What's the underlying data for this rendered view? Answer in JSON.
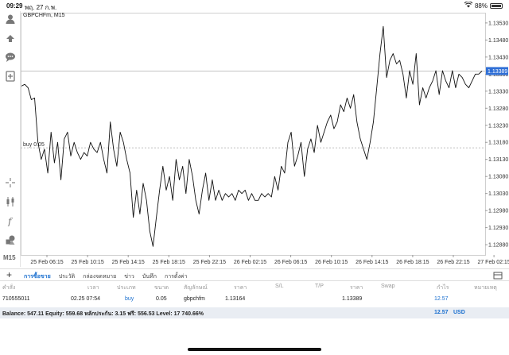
{
  "status": {
    "time": "09:29",
    "date": "พฤ. 27 ก.พ.",
    "battery": "88%",
    "battery_level": 0.88
  },
  "chart": {
    "symbol": "GBPCHFm, M15",
    "timeframe_label": "M15",
    "order_line_label": "buy 0.05",
    "current_price": "1.13389",
    "colors": {
      "line": "#111111",
      "grid": "#ececec",
      "price_tag": "#2f6fd6",
      "order_line": "#aaaaaa"
    }
  },
  "chart_data": {
    "type": "line",
    "title": "GBPCHFm, M15",
    "ylim": [
      1.1285,
      1.1356
    ],
    "y_ticks": [
      "1.13530",
      "1.13480",
      "1.13430",
      "1.13380",
      "1.13330",
      "1.13280",
      "1.13230",
      "1.13180",
      "1.13130",
      "1.13080",
      "1.13030",
      "1.12980",
      "1.12930",
      "1.12880"
    ],
    "y_tick_values": [
      1.1353,
      1.1348,
      1.1343,
      1.1338,
      1.1333,
      1.1328,
      1.1323,
      1.1318,
      1.1313,
      1.1308,
      1.1303,
      1.1298,
      1.1293,
      1.1288
    ],
    "x_ticks": [
      "25 Feb 06:15",
      "25 Feb 10:15",
      "25 Feb 14:15",
      "25 Feb 18:15",
      "25 Feb 22:15",
      "26 Feb 02:15",
      "26 Feb 06:15",
      "26 Feb 10:15",
      "26 Feb 14:15",
      "26 Feb 18:15",
      "26 Feb 22:15",
      "27 Feb 02:15"
    ],
    "current_price": 1.13389,
    "order_line_price": 1.13164,
    "values": [
      1.13345,
      1.1335,
      1.1334,
      1.13305,
      1.1331,
      1.1318,
      1.1313,
      1.1316,
      1.1309,
      1.1321,
      1.1312,
      1.1318,
      1.1307,
      1.1319,
      1.1321,
      1.1314,
      1.1318,
      1.1315,
      1.1313,
      1.1315,
      1.1314,
      1.1318,
      1.1316,
      1.1315,
      1.1318,
      1.1313,
      1.1309,
      1.1324,
      1.1316,
      1.1311,
      1.1321,
      1.1318,
      1.1313,
      1.1309,
      1.1296,
      1.1304,
      1.1297,
      1.1306,
      1.1301,
      1.1292,
      1.12875,
      1.1296,
      1.1304,
      1.1311,
      1.1304,
      1.1308,
      1.1301,
      1.1313,
      1.1307,
      1.1311,
      1.1303,
      1.1313,
      1.1308,
      1.1301,
      1.1297,
      1.1304,
      1.1309,
      1.1301,
      1.1307,
      1.1301,
      1.1304,
      1.1301,
      1.1303,
      1.1302,
      1.1303,
      1.1301,
      1.1304,
      1.1303,
      1.1304,
      1.1301,
      1.1303,
      1.1301,
      1.1301,
      1.1303,
      1.1302,
      1.1303,
      1.1302,
      1.1308,
      1.1304,
      1.1311,
      1.1309,
      1.1318,
      1.1321,
      1.1311,
      1.1314,
      1.1318,
      1.1308,
      1.1316,
      1.1319,
      1.1315,
      1.1323,
      1.1318,
      1.1321,
      1.1324,
      1.1326,
      1.1322,
      1.1324,
      1.1329,
      1.1327,
      1.1331,
      1.1328,
      1.1332,
      1.1324,
      1.1319,
      1.1316,
      1.1313,
      1.1318,
      1.1324,
      1.1334,
      1.1344,
      1.1352,
      1.1337,
      1.1342,
      1.1344,
      1.1341,
      1.1342,
      1.1338,
      1.1331,
      1.1339,
      1.1335,
      1.1344,
      1.1329,
      1.1334,
      1.1331,
      1.1334,
      1.1336,
      1.1339,
      1.1332,
      1.1339,
      1.1336,
      1.1334,
      1.1339,
      1.1334,
      1.1338,
      1.1337,
      1.1335,
      1.1334,
      1.1336,
      1.1338,
      1.1338,
      1.13389
    ]
  },
  "tabs": [
    {
      "label": "การซื้อขาย",
      "active": true
    },
    {
      "label": "ประวัติ",
      "active": false
    },
    {
      "label": "กล่องจดหมาย",
      "active": false
    },
    {
      "label": "ข่าว",
      "active": false
    },
    {
      "label": "บันทึก",
      "active": false
    },
    {
      "label": "การตั้งค่า",
      "active": false
    }
  ],
  "orders_header": {
    "order": "คำสั่ง",
    "time": "เวลา",
    "type": "ประเภท",
    "size": "ขนาด",
    "symbol": "สัญลักษณ์",
    "price": "ราคา",
    "sl": "S/L",
    "tp": "T/P",
    "price2": "ราคา",
    "swap": "Swap",
    "profit": "กำไร",
    "comment": "หมายเหตุ"
  },
  "order_row": {
    "order": "710555011",
    "time": "02.25 07:54",
    "type": "buy",
    "size": "0.05",
    "symbol": "gbpchfm",
    "price": "1.13164",
    "price2": "1.13389",
    "profit": "12.57"
  },
  "balance": {
    "text": "Balance: 547.11 Equity: 559.68 หลักประกัน: 3.15 ฟรี: 556.53 Level: 17 740.66%",
    "total": "12.57",
    "currency": "USD"
  }
}
